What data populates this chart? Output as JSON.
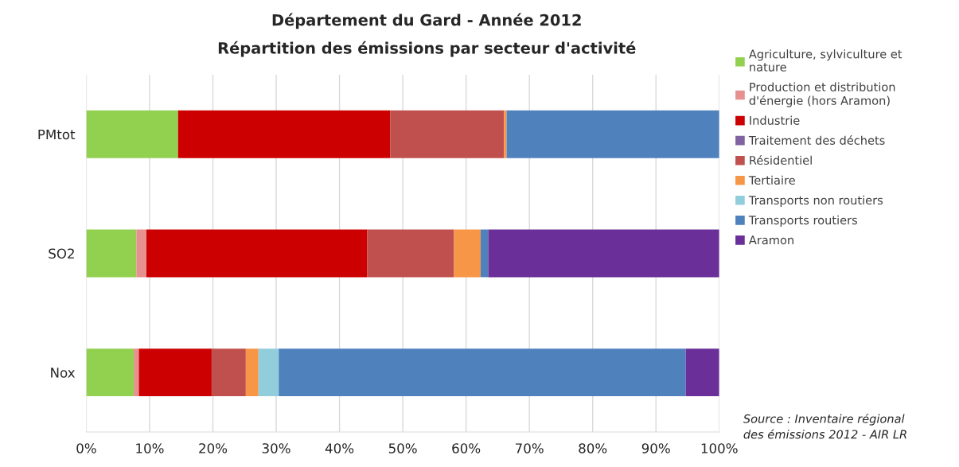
{
  "chart_data": {
    "type": "bar",
    "orientation": "horizontal",
    "stacked": true,
    "title": "Département du Gard - Année 2012",
    "subtitle": "Répartition des émissions par secteur d'activité",
    "categories": [
      "PMtot",
      "SO2",
      "Nox"
    ],
    "series": [
      {
        "name": "Agriculture, sylviculture et nature",
        "color": "#92d050",
        "values": [
          14.5,
          7.9,
          7.5
        ]
      },
      {
        "name": "Production et distribution d'énergie (hors Aramon)",
        "color": "#e6908f",
        "values": [
          0,
          1.6,
          0.8
        ]
      },
      {
        "name": "Industrie",
        "color": "#cc0000",
        "values": [
          33.5,
          34.9,
          11.5
        ]
      },
      {
        "name": "Traitement des déchets",
        "color": "#8064a2",
        "values": [
          0,
          0,
          0
        ]
      },
      {
        "name": "Résidentiel",
        "color": "#c0504d",
        "values": [
          18,
          13.7,
          5.4
        ]
      },
      {
        "name": "Tertiaire",
        "color": "#f79646",
        "values": [
          0.4,
          4.2,
          2.0
        ]
      },
      {
        "name": "Transports non routiers",
        "color": "#92cddc",
        "values": [
          0,
          0,
          3.2
        ]
      },
      {
        "name": "Transports routiers",
        "color": "#4f81bd",
        "values": [
          33.6,
          1.2,
          64.3
        ]
      },
      {
        "name": "Aramon",
        "color": "#6a2f98",
        "values": [
          0,
          36.5,
          5.3
        ]
      }
    ],
    "xlim": [
      0,
      100
    ],
    "xticks": [
      {
        "value": 0,
        "label": "0%"
      },
      {
        "value": 10,
        "label": "10%"
      },
      {
        "value": 20,
        "label": "20%"
      },
      {
        "value": 30,
        "label": "30%"
      },
      {
        "value": 40,
        "label": "40%"
      },
      {
        "value": 50,
        "label": "50%"
      },
      {
        "value": 60,
        "label": "60%"
      },
      {
        "value": 70,
        "label": "70%"
      },
      {
        "value": 80,
        "label": "80%"
      },
      {
        "value": 90,
        "label": "90%"
      },
      {
        "value": 100,
        "label": "100%"
      }
    ],
    "grid": "x",
    "legend": "right",
    "annotations": [
      "Source : Inventaire régional des émissions 2012 - AIR LR"
    ]
  }
}
